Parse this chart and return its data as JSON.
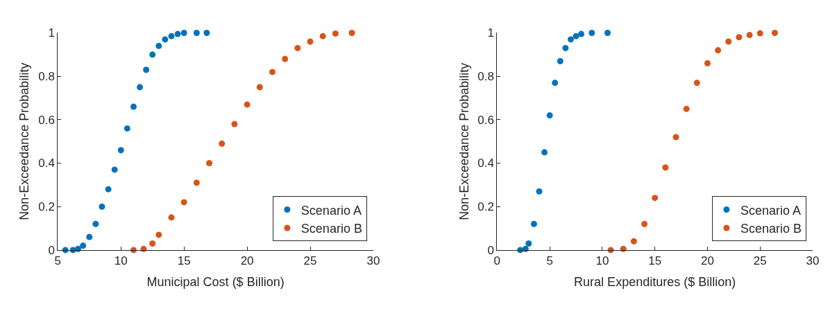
{
  "chart_data": [
    {
      "type": "scatter",
      "xlabel": "Municipal Cost ($ Billion)",
      "ylabel": "Non-Exceedance Probability",
      "xlim": [
        5,
        30
      ],
      "xticks": [
        5,
        10,
        15,
        20,
        25,
        30
      ],
      "ylim": [
        0,
        1
      ],
      "yticks": [
        0,
        0.2,
        0.4,
        0.6,
        0.8,
        1
      ],
      "legend": "bottom right",
      "marker": "circle",
      "series": [
        {
          "name": "Scenario A",
          "color": "#0072bd",
          "x": [
            5.6,
            6.2,
            6.6,
            7,
            7.5,
            8,
            8.5,
            9,
            9.5,
            10,
            10.5,
            11,
            11.5,
            12,
            12.5,
            13,
            13.5,
            14,
            14.5,
            15,
            16,
            16.8
          ],
          "values": [
            0,
            0,
            0.005,
            0.02,
            0.06,
            0.12,
            0.2,
            0.28,
            0.37,
            0.46,
            0.56,
            0.66,
            0.75,
            0.83,
            0.9,
            0.94,
            0.97,
            0.985,
            0.995,
            1,
            1,
            1
          ]
        },
        {
          "name": "Scenario B",
          "color": "#d95319",
          "x": [
            11,
            11.8,
            12.5,
            13,
            14,
            15,
            16,
            17,
            18,
            19,
            20,
            21,
            22,
            23,
            24,
            25,
            26,
            27,
            28.3
          ],
          "values": [
            0,
            0.005,
            0.03,
            0.07,
            0.15,
            0.22,
            0.31,
            0.4,
            0.49,
            0.58,
            0.67,
            0.75,
            0.82,
            0.88,
            0.93,
            0.96,
            0.985,
            0.997,
            1
          ]
        }
      ]
    },
    {
      "type": "scatter",
      "xlabel": "Rural Expenditures ($ Billion)",
      "ylabel": "Non-Exceedance Probability",
      "xlim": [
        0,
        30
      ],
      "xticks": [
        0,
        5,
        10,
        15,
        20,
        25,
        30
      ],
      "ylim": [
        0,
        1
      ],
      "yticks": [
        0,
        0.2,
        0.4,
        0.6,
        0.8,
        1
      ],
      "legend": "bottom right",
      "marker": "circle",
      "series": [
        {
          "name": "Scenario A",
          "color": "#0072bd",
          "x": [
            2.2,
            2.7,
            3,
            3.5,
            4,
            4.5,
            5,
            5.5,
            6,
            6.5,
            7,
            7.5,
            8,
            9,
            10.5
          ],
          "values": [
            0,
            0.005,
            0.03,
            0.12,
            0.27,
            0.45,
            0.62,
            0.77,
            0.87,
            0.93,
            0.97,
            0.985,
            0.995,
            1,
            1
          ]
        },
        {
          "name": "Scenario B",
          "color": "#d95319",
          "x": [
            10.8,
            12,
            13,
            14,
            15,
            16,
            17,
            18,
            19,
            20,
            21,
            22,
            23,
            24,
            25,
            26.4
          ],
          "values": [
            0,
            0.005,
            0.04,
            0.12,
            0.24,
            0.38,
            0.52,
            0.65,
            0.77,
            0.86,
            0.92,
            0.96,
            0.98,
            0.99,
            0.998,
            1
          ]
        }
      ]
    }
  ]
}
